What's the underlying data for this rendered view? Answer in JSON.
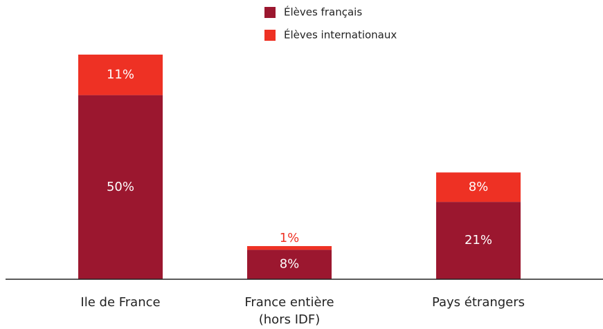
{
  "chart_data": {
    "type": "stacked_bar",
    "categories": [
      "Ile de France",
      "France entière\n(hors IDF)",
      "Pays étrangers"
    ],
    "series": [
      {
        "name": "Élèves français",
        "color": "#9b172f",
        "values": [
          50,
          8,
          21
        ],
        "value_labels": [
          "50%",
          "8%",
          "21%"
        ]
      },
      {
        "name": "Élèves internationaux",
        "color": "#ee3124",
        "values": [
          11,
          1,
          8
        ],
        "value_labels": [
          "11%",
          "1%",
          "8%"
        ]
      }
    ]
  }
}
